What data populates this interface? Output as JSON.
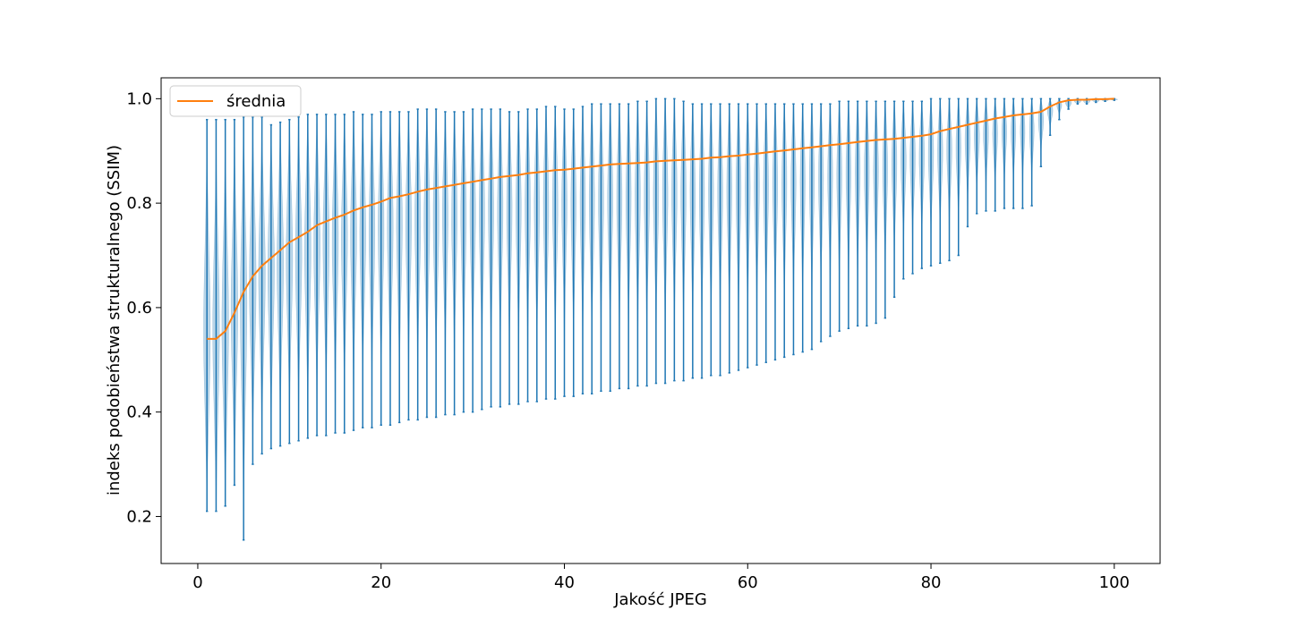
{
  "chart_data": {
    "type": "violin",
    "xlabel": "Jakość JPEG",
    "ylabel": "indeks podobieństwa strukturalnego (SSIM)",
    "xlim": [
      -4,
      105
    ],
    "ylim": [
      0.11,
      1.04
    ],
    "xticks": [
      "0",
      "20",
      "40",
      "60",
      "80",
      "100"
    ],
    "yticks": [
      "0.2",
      "0.4",
      "0.6",
      "0.8",
      "1.0"
    ],
    "grid": false,
    "legend": {
      "placement": "top-left",
      "entries": [
        "średnia"
      ]
    },
    "colors": {
      "violin": "#1f77b4",
      "mean_line": "#ff7f0e"
    },
    "x": [
      1,
      2,
      3,
      4,
      5,
      6,
      7,
      8,
      9,
      10,
      11,
      12,
      13,
      14,
      15,
      16,
      17,
      18,
      19,
      20,
      21,
      22,
      23,
      24,
      25,
      26,
      27,
      28,
      29,
      30,
      31,
      32,
      33,
      34,
      35,
      36,
      37,
      38,
      39,
      40,
      41,
      42,
      43,
      44,
      45,
      46,
      47,
      48,
      49,
      50,
      51,
      52,
      53,
      54,
      55,
      56,
      57,
      58,
      59,
      60,
      61,
      62,
      63,
      64,
      65,
      66,
      67,
      68,
      69,
      70,
      71,
      72,
      73,
      74,
      75,
      76,
      77,
      78,
      79,
      80,
      81,
      82,
      83,
      84,
      85,
      86,
      87,
      88,
      89,
      90,
      91,
      92,
      93,
      94,
      95,
      96,
      97,
      98,
      99,
      100
    ],
    "min": [
      0.21,
      0.21,
      0.22,
      0.26,
      0.155,
      0.3,
      0.32,
      0.33,
      0.335,
      0.34,
      0.345,
      0.35,
      0.355,
      0.355,
      0.36,
      0.36,
      0.365,
      0.37,
      0.37,
      0.375,
      0.375,
      0.38,
      0.385,
      0.385,
      0.39,
      0.39,
      0.395,
      0.395,
      0.4,
      0.4,
      0.405,
      0.41,
      0.41,
      0.415,
      0.415,
      0.42,
      0.42,
      0.425,
      0.425,
      0.43,
      0.43,
      0.435,
      0.435,
      0.44,
      0.44,
      0.445,
      0.445,
      0.45,
      0.45,
      0.455,
      0.455,
      0.46,
      0.46,
      0.465,
      0.465,
      0.47,
      0.47,
      0.475,
      0.48,
      0.485,
      0.49,
      0.495,
      0.5,
      0.505,
      0.51,
      0.515,
      0.52,
      0.535,
      0.545,
      0.555,
      0.56,
      0.565,
      0.565,
      0.57,
      0.58,
      0.62,
      0.655,
      0.665,
      0.675,
      0.68,
      0.685,
      0.69,
      0.7,
      0.755,
      0.78,
      0.785,
      0.785,
      0.79,
      0.79,
      0.79,
      0.795,
      0.87,
      0.93,
      0.96,
      0.98,
      0.99,
      0.99,
      0.993,
      0.995,
      0.997
    ],
    "max": [
      0.96,
      0.96,
      0.96,
      0.96,
      0.965,
      0.965,
      0.965,
      0.95,
      0.955,
      0.96,
      0.965,
      0.97,
      0.97,
      0.97,
      0.97,
      0.97,
      0.975,
      0.97,
      0.97,
      0.975,
      0.975,
      0.975,
      0.975,
      0.98,
      0.98,
      0.98,
      0.975,
      0.975,
      0.975,
      0.98,
      0.98,
      0.98,
      0.98,
      0.975,
      0.975,
      0.98,
      0.98,
      0.985,
      0.985,
      0.98,
      0.98,
      0.985,
      0.99,
      0.99,
      0.99,
      0.99,
      0.99,
      0.995,
      0.995,
      1.0,
      1.0,
      1.0,
      0.995,
      0.99,
      0.99,
      0.99,
      0.99,
      0.99,
      0.99,
      0.99,
      0.99,
      0.99,
      0.99,
      0.99,
      0.99,
      0.99,
      0.99,
      0.99,
      0.99,
      0.995,
      0.995,
      0.995,
      0.995,
      0.995,
      0.995,
      0.995,
      0.995,
      0.995,
      0.995,
      1.0,
      1.0,
      1.0,
      1.0,
      1.0,
      1.0,
      1.0,
      1.0,
      1.0,
      1.0,
      1.0,
      1.0,
      1.0,
      1.0,
      1.0,
      1.0,
      1.0,
      1.0,
      1.0,
      1.0,
      1.0
    ],
    "mean": [
      0.54,
      0.54,
      0.555,
      0.59,
      0.63,
      0.66,
      0.68,
      0.695,
      0.71,
      0.725,
      0.735,
      0.745,
      0.758,
      0.765,
      0.772,
      0.778,
      0.786,
      0.792,
      0.797,
      0.803,
      0.81,
      0.813,
      0.817,
      0.822,
      0.826,
      0.829,
      0.832,
      0.835,
      0.838,
      0.841,
      0.844,
      0.847,
      0.85,
      0.852,
      0.854,
      0.857,
      0.859,
      0.861,
      0.863,
      0.864,
      0.866,
      0.868,
      0.87,
      0.872,
      0.874,
      0.875,
      0.876,
      0.877,
      0.878,
      0.88,
      0.881,
      0.882,
      0.883,
      0.884,
      0.885,
      0.887,
      0.888,
      0.89,
      0.891,
      0.893,
      0.895,
      0.897,
      0.899,
      0.901,
      0.903,
      0.905,
      0.907,
      0.909,
      0.911,
      0.913,
      0.915,
      0.917,
      0.919,
      0.921,
      0.922,
      0.923,
      0.925,
      0.927,
      0.929,
      0.932,
      0.938,
      0.942,
      0.946,
      0.95,
      0.954,
      0.958,
      0.962,
      0.965,
      0.968,
      0.97,
      0.972,
      0.975,
      0.985,
      0.993,
      0.997,
      0.998,
      0.998,
      0.999,
      0.999,
      1.0
    ]
  }
}
